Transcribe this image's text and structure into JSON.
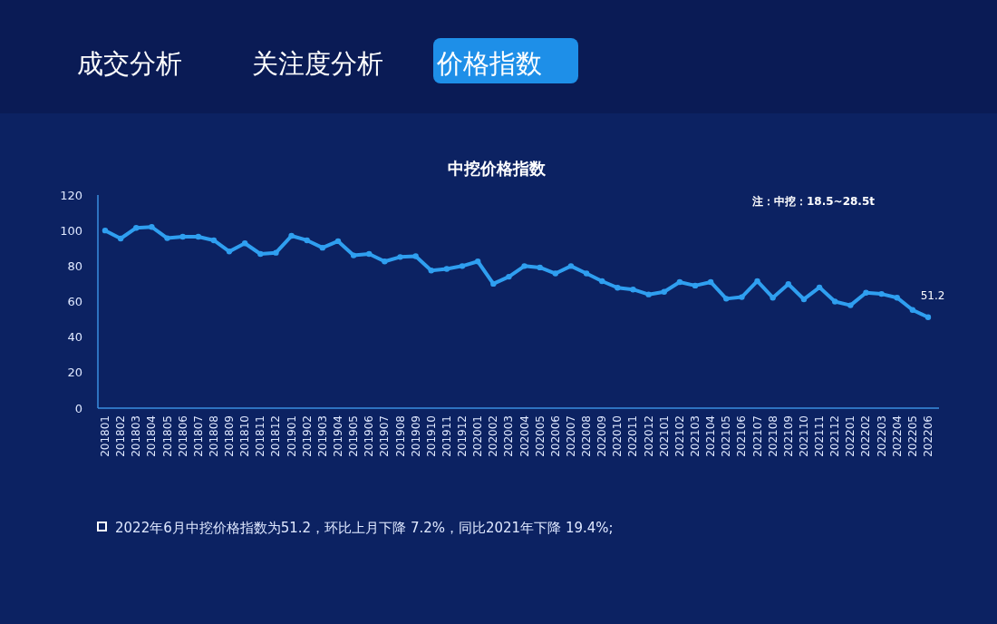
{
  "chart_data": {
    "type": "line",
    "title": "中挖价格指数",
    "categories": [
      "201801",
      "201802",
      "201803",
      "201804",
      "201805",
      "201806",
      "201807",
      "201808",
      "201809",
      "201810",
      "201811",
      "201812",
      "201901",
      "201902",
      "201903",
      "201904",
      "201905",
      "201906",
      "201907",
      "201908",
      "201909",
      "201910",
      "201911",
      "201912",
      "202001",
      "202002",
      "202003",
      "202004",
      "202005",
      "202006",
      "202007",
      "202008",
      "202009",
      "202010",
      "202011",
      "202012",
      "202101",
      "202102",
      "202103",
      "202104",
      "202105",
      "202106",
      "202107",
      "202108",
      "202109",
      "202110",
      "202111",
      "202112",
      "202201",
      "202202",
      "202203",
      "202204",
      "202205",
      "202206"
    ],
    "series": [
      {
        "color": "#2f9ff0",
        "values": [
          100,
          95.5,
          101.5,
          102,
          95.7,
          96.5,
          96.5,
          94.5,
          88.2,
          92.8,
          86.8,
          87.5,
          97,
          94.5,
          90.3,
          94,
          86,
          86.8,
          82.6,
          85.1,
          85.5,
          77.5,
          78.4,
          80,
          82.6,
          70,
          74,
          80,
          79.2,
          75.8,
          80,
          75.8,
          71.5,
          67.8,
          66.8,
          64,
          65.5,
          71,
          69,
          71,
          61.6,
          62.5,
          71.5,
          62.2,
          69.8,
          61.3,
          68,
          60,
          57.9,
          65,
          64.3,
          62.2,
          55.3,
          51.2
        ],
        "value_labels": [
          null,
          null,
          null,
          null,
          null,
          null,
          null,
          null,
          null,
          null,
          null,
          null,
          null,
          null,
          null,
          null,
          null,
          null,
          null,
          null,
          null,
          null,
          null,
          null,
          null,
          null,
          null,
          null,
          null,
          null,
          null,
          null,
          null,
          null,
          null,
          null,
          null,
          null,
          null,
          null,
          null,
          null,
          null,
          null,
          null,
          null,
          null,
          null,
          null,
          null,
          null,
          null,
          null,
          "51.2"
        ]
      }
    ],
    "ylim": [
      0,
      120
    ],
    "yticks": [
      0,
      20,
      40,
      60,
      80,
      100,
      120
    ],
    "grid": false,
    "marker": "circle",
    "annotations": [
      "成交分析",
      "关注度分析",
      "价格指数",
      "注：中挖：18.5~28.5t",
      "2022年6月中挖价格指数为51.2，环比上月下降 7.2%，同比2021年下降 19.4%;"
    ]
  }
}
